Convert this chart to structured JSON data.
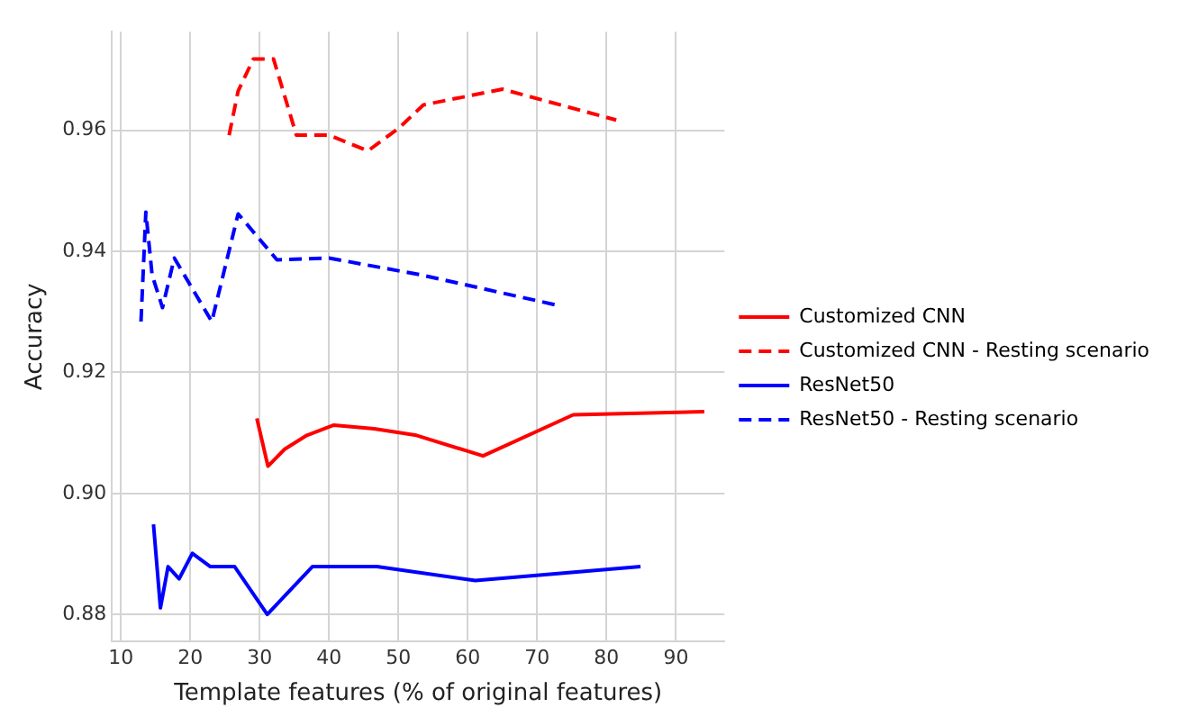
{
  "chart_data": {
    "type": "line",
    "xlabel": "Template features (% of original features)",
    "ylabel": "Accuracy",
    "xlim": [
      8.7,
      97
    ],
    "xticks": [
      10,
      20,
      30,
      40,
      50,
      60,
      70,
      80,
      90
    ],
    "ylim": [
      0.8755,
      0.9763
    ],
    "yticks": [
      {
        "value": 0.88,
        "label": "0.88"
      },
      {
        "value": 0.9,
        "label": "0.90"
      },
      {
        "value": 0.92,
        "label": "0.92"
      },
      {
        "value": 0.94,
        "label": "0.94"
      },
      {
        "value": 0.96,
        "label": "0.96"
      }
    ],
    "grid": true,
    "legend": "right",
    "marker": "none",
    "series": [
      {
        "name": "Customized CNN",
        "color": "#ff0000",
        "line_style": "solid",
        "x": [
          29.6,
          31.2,
          33.6,
          36.8,
          40.7,
          46.5,
          52.6,
          62.2,
          75.2,
          94.1
        ],
        "values": [
          0.9124,
          0.9045,
          0.9073,
          0.9096,
          0.9113,
          0.9107,
          0.9096,
          0.9062,
          0.913,
          0.9135
        ]
      },
      {
        "name": "Customized CNN - Resting scenario",
        "color": "#ff0000",
        "line_style": "dashed",
        "x": [
          25.6,
          26.9,
          29.1,
          32.0,
          35.3,
          40.0,
          45.6,
          50.0,
          53.6,
          65.0,
          81.4
        ],
        "values": [
          0.9592,
          0.9665,
          0.9718,
          0.9718,
          0.9592,
          0.9592,
          0.9566,
          0.9603,
          0.9642,
          0.9668,
          0.9617
        ]
      },
      {
        "name": "ResNet50",
        "color": "#0000ff",
        "line_style": "solid",
        "x": [
          14.7,
          15.7,
          16.8,
          18.4,
          20.3,
          22.9,
          26.4,
          31.1,
          37.6,
          46.9,
          61.1,
          84.9
        ],
        "values": [
          0.8949,
          0.8811,
          0.8879,
          0.8859,
          0.8901,
          0.8879,
          0.8879,
          0.88,
          0.8879,
          0.8879,
          0.8856,
          0.8879
        ]
      },
      {
        "name": "ResNet50 - Resting scenario",
        "color": "#0000ff",
        "line_style": "dashed",
        "x": [
          12.9,
          13.6,
          14.5,
          16.0,
          17.7,
          23.1,
          26.9,
          32.5,
          40.0,
          53.3,
          73.3
        ],
        "values": [
          0.9284,
          0.9465,
          0.9361,
          0.9307,
          0.9389,
          0.9284,
          0.9462,
          0.9386,
          0.9389,
          0.9361,
          0.931
        ]
      }
    ]
  }
}
